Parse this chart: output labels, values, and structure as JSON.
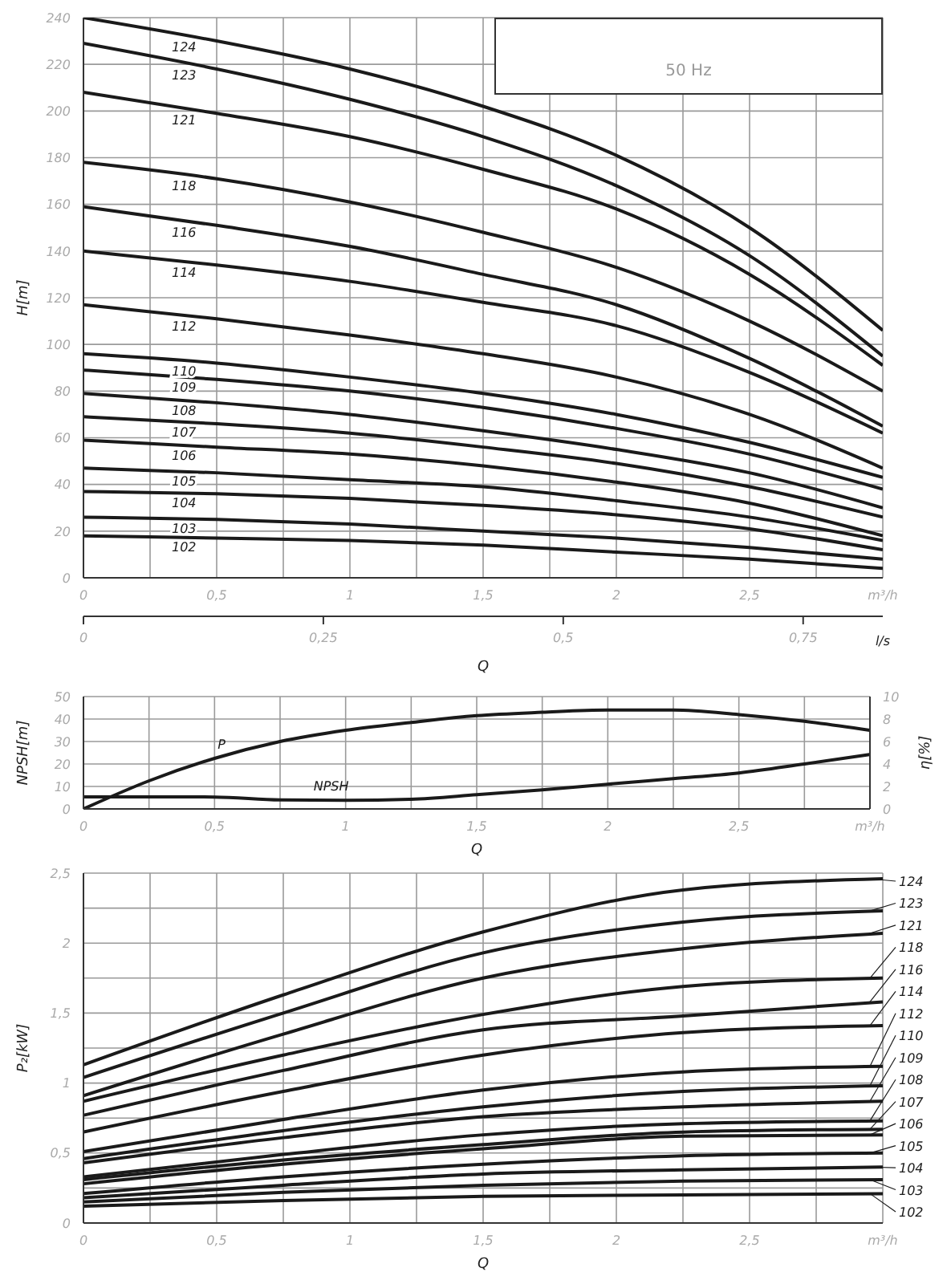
{
  "chart_data": [
    {
      "type": "line",
      "title": "50 Hz",
      "xlabel": "Q",
      "ylabel": "H[m]",
      "x": [
        0,
        0.5,
        1,
        1.5,
        2,
        2.5,
        3
      ],
      "xlim": [
        0,
        3
      ],
      "xticks": [
        0,
        {
          "value": 0.25,
          "label": null
        },
        {
          "value": 0.5,
          "label": "0,5"
        },
        {
          "value": 0.75,
          "label": null
        },
        1,
        {
          "value": 1.25,
          "label": null
        },
        {
          "value": 1.5,
          "label": "1,5"
        },
        {
          "value": 1.75,
          "label": null
        },
        2,
        {
          "value": 2.25,
          "label": null
        },
        {
          "value": 2.5,
          "label": "2,5"
        },
        {
          "value": 2.75,
          "label": null
        },
        {
          "value": 3,
          "label": "m³/h"
        }
      ],
      "x2lim": [
        0,
        0.833
      ],
      "x2ticks": [
        0,
        {
          "value": 0.25,
          "label": "0,25"
        },
        {
          "value": 0.5,
          "label": "0,5"
        },
        {
          "value": 0.75,
          "label": "0,75"
        },
        {
          "value": 0.833,
          "label": "l/s"
        }
      ],
      "ylim": [
        0,
        240
      ],
      "yticks": [
        0,
        20,
        40,
        60,
        80,
        100,
        120,
        140,
        160,
        180,
        200,
        220,
        240
      ],
      "grid": true,
      "marker": "none",
      "line_style": "solid",
      "series": [
        {
          "name": "124",
          "color": "#1a1a1a",
          "values": [
            240,
            230,
            218,
            202,
            181,
            150,
            106
          ]
        },
        {
          "name": "123",
          "color": "#1a1a1a",
          "values": [
            229,
            218,
            205,
            189,
            168,
            138,
            95
          ]
        },
        {
          "name": "121",
          "color": "#1a1a1a",
          "values": [
            208,
            199,
            189,
            175,
            158,
            130,
            91
          ]
        },
        {
          "name": "118",
          "color": "#1a1a1a",
          "values": [
            178,
            171,
            161,
            148,
            133,
            110,
            80
          ]
        },
        {
          "name": "116",
          "color": "#1a1a1a",
          "values": [
            159,
            151,
            142,
            130,
            117,
            94,
            65
          ]
        },
        {
          "name": "114",
          "color": "#1a1a1a",
          "values": [
            140,
            134,
            127,
            118,
            108,
            88,
            62
          ]
        },
        {
          "name": "112",
          "color": "#1a1a1a",
          "values": [
            117,
            111,
            104,
            96,
            86,
            70,
            47
          ]
        },
        {
          "name": "110",
          "color": "#1a1a1a",
          "values": [
            96,
            92,
            86,
            79,
            70,
            58,
            43
          ]
        },
        {
          "name": "109",
          "color": "#1a1a1a",
          "values": [
            89,
            85,
            80,
            73,
            64,
            53,
            38
          ]
        },
        {
          "name": "108",
          "color": "#1a1a1a",
          "values": [
            79,
            75,
            70,
            63,
            55,
            45,
            30
          ]
        },
        {
          "name": "107",
          "color": "#1a1a1a",
          "values": [
            69,
            66,
            62,
            56,
            49,
            39,
            26
          ]
        },
        {
          "name": "106",
          "color": "#1a1a1a",
          "values": [
            59,
            56,
            53,
            48,
            41,
            32,
            18
          ]
        },
        {
          "name": "105",
          "color": "#1a1a1a",
          "values": [
            47,
            45,
            42,
            39,
            33,
            26,
            16
          ]
        },
        {
          "name": "104",
          "color": "#1a1a1a",
          "values": [
            37,
            36,
            34,
            31,
            27,
            21,
            12
          ]
        },
        {
          "name": "103",
          "color": "#1a1a1a",
          "values": [
            26,
            25,
            23,
            20,
            17,
            13,
            8
          ]
        },
        {
          "name": "102",
          "color": "#1a1a1a",
          "values": [
            18,
            17,
            16,
            14,
            11,
            8,
            4
          ]
        }
      ]
    },
    {
      "type": "line",
      "xlabel": "Q",
      "ylabel": "NPSH[m]",
      "y2label": "η[%]",
      "x": [
        0,
        0.25,
        0.5,
        0.75,
        1,
        1.25,
        1.5,
        1.75,
        2,
        2.25,
        2.5,
        2.75,
        3
      ],
      "xlim": [
        0,
        3
      ],
      "xticks": [
        0,
        {
          "value": 0.25,
          "label": null
        },
        {
          "value": 0.5,
          "label": "0,5"
        },
        {
          "value": 0.75,
          "label": null
        },
        1,
        {
          "value": 1.25,
          "label": null
        },
        {
          "value": 1.5,
          "label": "1,5"
        },
        {
          "value": 1.75,
          "label": null
        },
        2,
        {
          "value": 2.25,
          "label": null
        },
        {
          "value": 2.5,
          "label": "2,5"
        },
        {
          "value": 2.75,
          "label": null
        },
        {
          "value": 3,
          "label": "m³/h"
        }
      ],
      "ylim": [
        0,
        50
      ],
      "yticks": [
        0,
        10,
        20,
        30,
        40,
        50
      ],
      "y2lim": [
        0,
        10
      ],
      "y2ticks": [
        0,
        2,
        4,
        6,
        8,
        10
      ],
      "grid": true,
      "marker": "none",
      "line_style": "solid",
      "series": [
        {
          "name": "P",
          "color": "#1a1a1a",
          "axis": "y2",
          "values": [
            0,
            2.5,
            4.5,
            6.0,
            7.0,
            7.7,
            8.3,
            8.6,
            8.8,
            8.8,
            8.4,
            7.8,
            7.0
          ]
        },
        {
          "name": "NPSH",
          "color": "#1a1a1a",
          "values": [
            5.4,
            5.4,
            5.3,
            4.0,
            3.8,
            4.3,
            6.3,
            8.5,
            11,
            13.5,
            16,
            20,
            24.2
          ]
        }
      ]
    },
    {
      "type": "line",
      "xlabel": "Q",
      "ylabel": "P₂[kW]",
      "x": [
        0,
        0.75,
        1.5,
        2.25,
        3
      ],
      "xlim": [
        0,
        3
      ],
      "xticks": [
        0,
        {
          "value": 0.25,
          "label": null
        },
        {
          "value": 0.5,
          "label": "0,5"
        },
        {
          "value": 0.75,
          "label": null
        },
        1,
        {
          "value": 1.25,
          "label": null
        },
        {
          "value": 1.5,
          "label": "1,5"
        },
        {
          "value": 1.75,
          "label": null
        },
        2,
        {
          "value": 2.25,
          "label": null
        },
        {
          "value": 2.5,
          "label": "2,5"
        },
        {
          "value": 2.75,
          "label": null
        },
        {
          "value": 3,
          "label": "m³/h"
        }
      ],
      "ylim": [
        0,
        2.5
      ],
      "yticks": [
        0,
        {
          "value": 0.25,
          "label": null
        },
        {
          "value": 0.5,
          "label": "0,5"
        },
        {
          "value": 0.75,
          "label": null
        },
        1,
        {
          "value": 1.25,
          "label": null
        },
        {
          "value": 1.5,
          "label": "1,5"
        },
        {
          "value": 1.75,
          "label": null
        },
        2,
        {
          "value": 2.25,
          "label": null
        },
        {
          "value": 2.5,
          "label": "2,5"
        }
      ],
      "grid": true,
      "legend": "right",
      "marker": "none",
      "line_style": "solid",
      "series": [
        {
          "name": "124",
          "color": "#1a1a1a",
          "values": [
            1.13,
            1.63,
            2.08,
            2.38,
            2.46
          ]
        },
        {
          "name": "123",
          "color": "#1a1a1a",
          "values": [
            1.04,
            1.5,
            1.93,
            2.15,
            2.23
          ]
        },
        {
          "name": "121",
          "color": "#1a1a1a",
          "values": [
            0.91,
            1.35,
            1.75,
            1.96,
            2.07
          ]
        },
        {
          "name": "118",
          "color": "#1a1a1a",
          "values": [
            0.87,
            1.2,
            1.49,
            1.69,
            1.75
          ]
        },
        {
          "name": "116",
          "color": "#1a1a1a",
          "values": [
            0.77,
            1.09,
            1.38,
            1.48,
            1.58
          ]
        },
        {
          "name": "114",
          "color": "#1a1a1a",
          "values": [
            0.65,
            0.94,
            1.2,
            1.36,
            1.41
          ]
        },
        {
          "name": "112",
          "color": "#1a1a1a",
          "values": [
            0.51,
            0.74,
            0.95,
            1.08,
            1.12
          ]
        },
        {
          "name": "110",
          "color": "#1a1a1a",
          "values": [
            0.46,
            0.66,
            0.83,
            0.94,
            0.98
          ]
        },
        {
          "name": "109",
          "color": "#1a1a1a",
          "values": [
            0.43,
            0.61,
            0.76,
            0.83,
            0.87
          ]
        },
        {
          "name": "108",
          "color": "#1a1a1a",
          "values": [
            0.33,
            0.49,
            0.63,
            0.71,
            0.73
          ]
        },
        {
          "name": "107",
          "color": "#1a1a1a",
          "values": [
            0.31,
            0.45,
            0.56,
            0.65,
            0.67
          ]
        },
        {
          "name": "106",
          "color": "#1a1a1a",
          "values": [
            0.28,
            0.42,
            0.53,
            0.62,
            0.63
          ]
        },
        {
          "name": "105",
          "color": "#1a1a1a",
          "values": [
            0.21,
            0.33,
            0.42,
            0.48,
            0.5
          ]
        },
        {
          "name": "104",
          "color": "#1a1a1a",
          "values": [
            0.18,
            0.27,
            0.35,
            0.38,
            0.4
          ]
        },
        {
          "name": "103",
          "color": "#1a1a1a",
          "values": [
            0.15,
            0.22,
            0.27,
            0.3,
            0.31
          ]
        },
        {
          "name": "102",
          "color": "#1a1a1a",
          "values": [
            0.12,
            0.16,
            0.19,
            0.2,
            0.21
          ]
        }
      ]
    }
  ]
}
